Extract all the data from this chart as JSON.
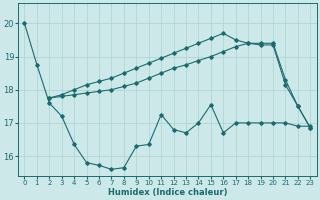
{
  "title": "",
  "xlabel": "Humidex (Indice chaleur)",
  "ylabel": "",
  "bg_color": "#cde8e8",
  "grid_color": "#b0d4d4",
  "line_color": "#1a6b6e",
  "xlim": [
    -0.5,
    23.5
  ],
  "ylim": [
    15.4,
    20.6
  ],
  "x_ticks": [
    0,
    1,
    2,
    3,
    4,
    5,
    6,
    7,
    8,
    9,
    10,
    11,
    12,
    13,
    14,
    15,
    16,
    17,
    18,
    19,
    20,
    21,
    22,
    23
  ],
  "y_ticks": [
    16,
    17,
    18,
    19,
    20
  ],
  "line1_x": [
    0,
    1,
    2,
    3,
    4,
    5,
    6,
    7,
    8,
    9,
    10,
    11,
    12,
    13,
    14,
    15,
    16,
    17,
    18,
    19,
    20,
    21,
    22,
    23
  ],
  "line1_y": [
    20.0,
    18.75,
    17.6,
    17.2,
    16.35,
    15.8,
    15.72,
    15.6,
    15.65,
    16.3,
    16.35,
    17.25,
    16.8,
    16.7,
    17.0,
    17.55,
    16.7,
    17.0,
    17.0,
    17.0,
    17.0,
    17.0,
    16.9,
    16.9
  ],
  "line2_x": [
    2,
    3,
    4,
    5,
    6,
    7,
    8,
    9,
    10,
    11,
    12,
    13,
    14,
    15,
    16,
    17,
    18,
    19,
    20,
    21,
    22,
    23
  ],
  "line2_y": [
    17.75,
    17.8,
    17.85,
    17.9,
    17.95,
    18.0,
    18.1,
    18.2,
    18.35,
    18.5,
    18.65,
    18.75,
    18.88,
    19.0,
    19.15,
    19.3,
    19.4,
    19.4,
    19.4,
    18.3,
    17.5,
    16.85
  ],
  "line3_x": [
    2,
    3,
    4,
    5,
    6,
    7,
    8,
    9,
    10,
    11,
    12,
    13,
    14,
    15,
    16,
    17,
    18,
    19,
    20,
    21,
    22,
    23
  ],
  "line3_y": [
    17.75,
    17.85,
    18.0,
    18.15,
    18.25,
    18.35,
    18.5,
    18.65,
    18.8,
    18.95,
    19.1,
    19.25,
    19.4,
    19.55,
    19.7,
    19.5,
    19.4,
    19.35,
    19.35,
    18.15,
    17.5,
    16.85
  ]
}
